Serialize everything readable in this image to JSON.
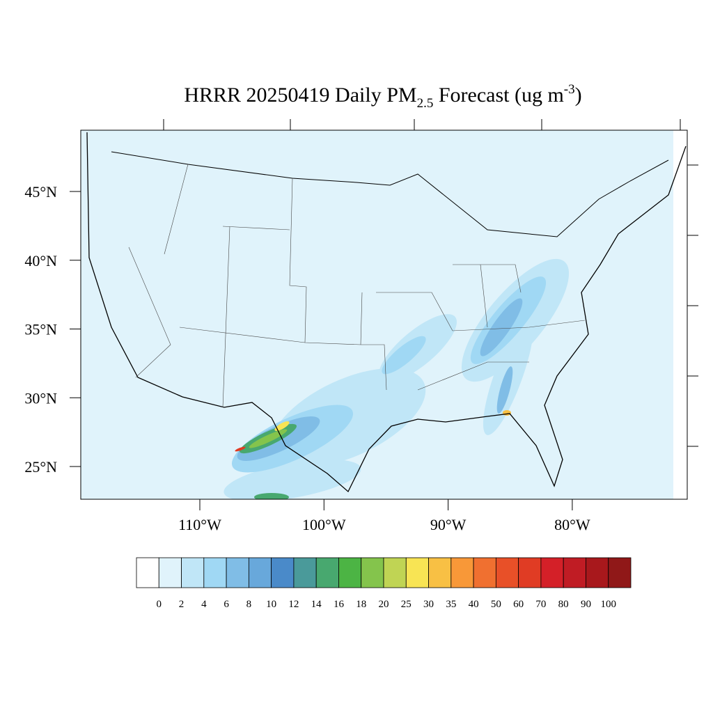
{
  "title": {
    "main": "HRRR 20250419 Daily PM",
    "subscript": "2.5",
    "middle": " Forecast (ug m",
    "superscript": "-3",
    "end": ")"
  },
  "latitude_ticks": [
    {
      "value": 45,
      "label": "45°N"
    },
    {
      "value": 40,
      "label": "40°N"
    },
    {
      "value": 35,
      "label": "35°N"
    },
    {
      "value": 30,
      "label": "30°N"
    },
    {
      "value": 25,
      "label": "25°N"
    }
  ],
  "longitude_ticks": [
    {
      "value": -110,
      "label": "110°W"
    },
    {
      "value": -100,
      "label": "100°W"
    },
    {
      "value": -90,
      "label": "90°W"
    },
    {
      "value": -80,
      "label": "80°W"
    }
  ],
  "colorbar": {
    "levels": [
      0,
      2,
      4,
      6,
      8,
      10,
      12,
      14,
      16,
      18,
      20,
      25,
      30,
      35,
      40,
      50,
      60,
      70,
      80,
      90,
      100
    ],
    "colors": [
      "#ffffff",
      "#e0f3fb",
      "#c0e6f7",
      "#a0d8f4",
      "#80bde6",
      "#68a8db",
      "#4a8ac9",
      "#4a9a9a",
      "#48a86f",
      "#4cb444",
      "#84c44c",
      "#c0d454",
      "#f8e454",
      "#f8c044",
      "#f89838",
      "#f07030",
      "#e85028",
      "#e03c24",
      "#d42028",
      "#c01c24",
      "#a8181c",
      "#901818"
    ]
  }
}
